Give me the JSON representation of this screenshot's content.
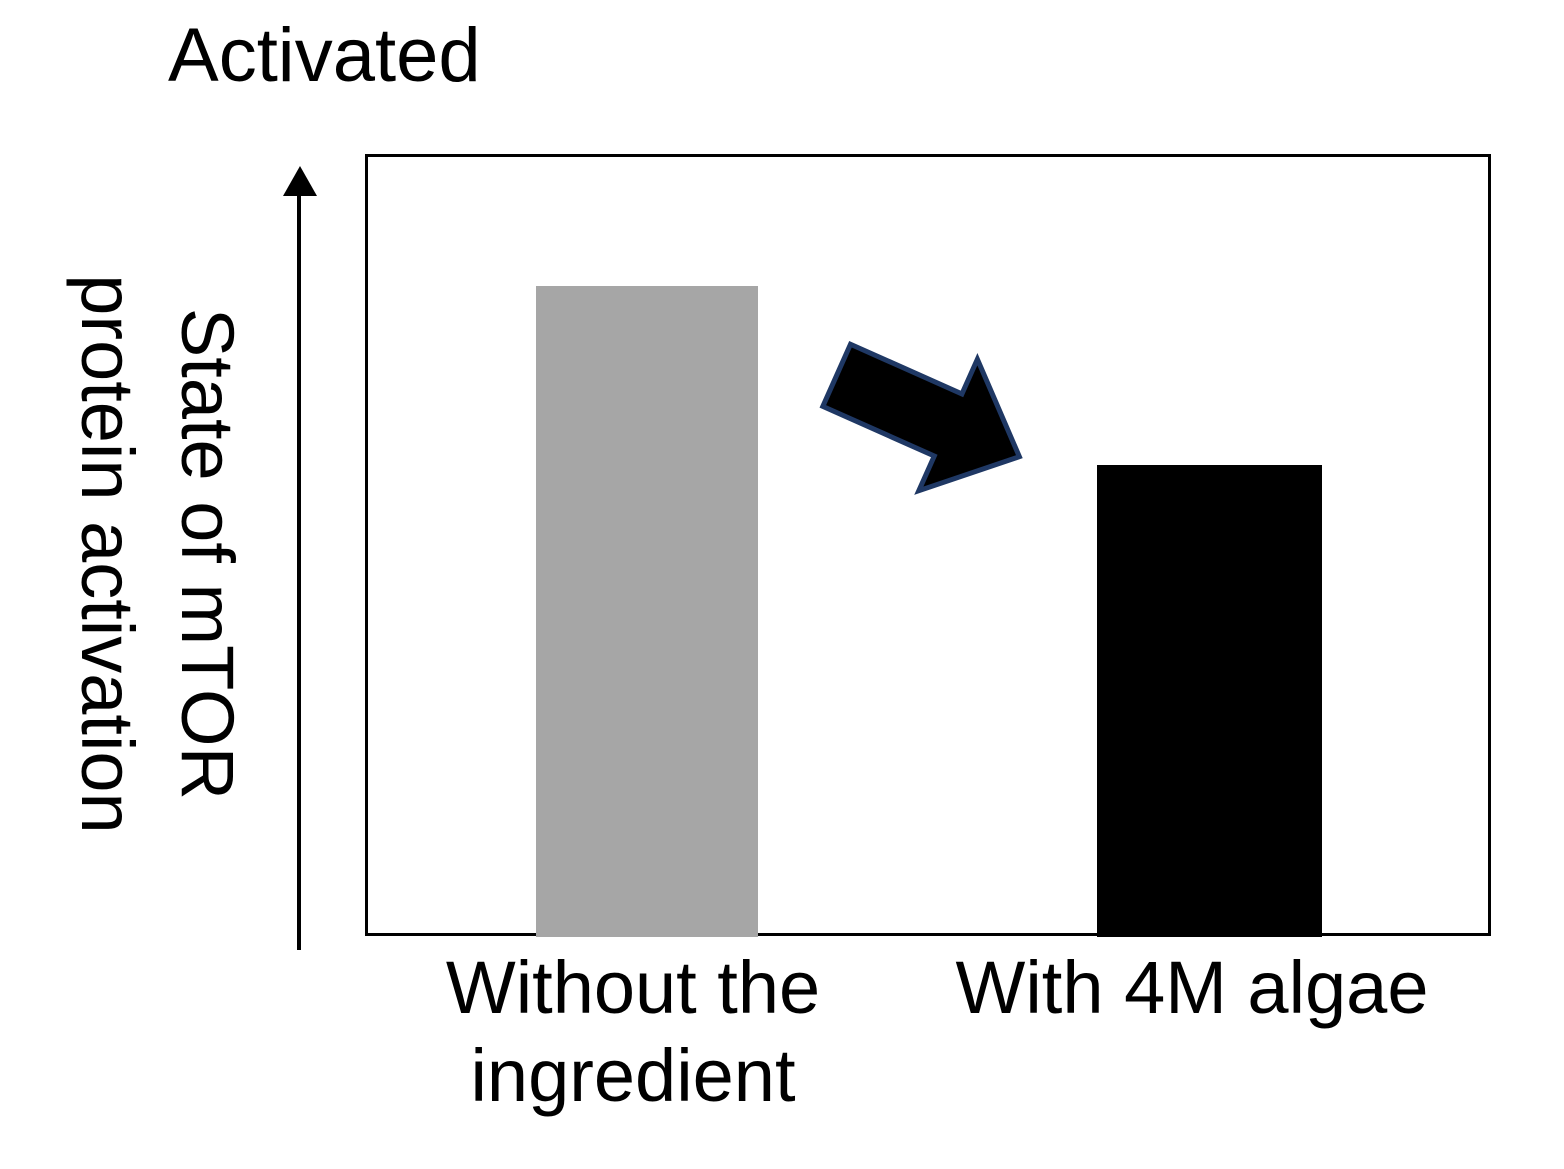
{
  "chart_data": {
    "type": "bar",
    "title": "Activated",
    "ylabel": "State of mTOR protein activation",
    "xlabel": "",
    "y_axis_top_caption": "Activated",
    "categories": [
      "Without the ingredient",
      "With 4M algae"
    ],
    "series": [
      {
        "name": "State of mTOR protein activation",
        "values": [
          0.835,
          0.605
        ]
      }
    ],
    "value_scale": "relative bar height; qualitative axis, no numeric ticks or gridlines shown",
    "ylim": [
      0,
      1
    ],
    "grid": false,
    "legend": false,
    "bar_colors": [
      "#a6a6a6",
      "#000000"
    ],
    "annotation_arrow": {
      "shape": "block-arrow",
      "direction": "down-right",
      "fill": "#000000",
      "outline": "#1f3864",
      "meaning": "decrease in mTOR activation from the gray bar to the black bar"
    }
  },
  "labels": {
    "activated": "Activated",
    "y_axis_line1": "State of mTOR",
    "y_axis_line2": "protein activation",
    "category1_line1": "Without the",
    "category1_line2": "ingredient",
    "category2": "With 4M algae"
  },
  "colors": {
    "background": "#ffffff",
    "text": "#000000",
    "axis": "#000000",
    "plot_border": "#000000",
    "bar_without_ingredient": "#a6a6a6",
    "bar_with_4m_algae": "#000000",
    "arrow_fill": "#000000",
    "arrow_outline": "#1f3864"
  }
}
